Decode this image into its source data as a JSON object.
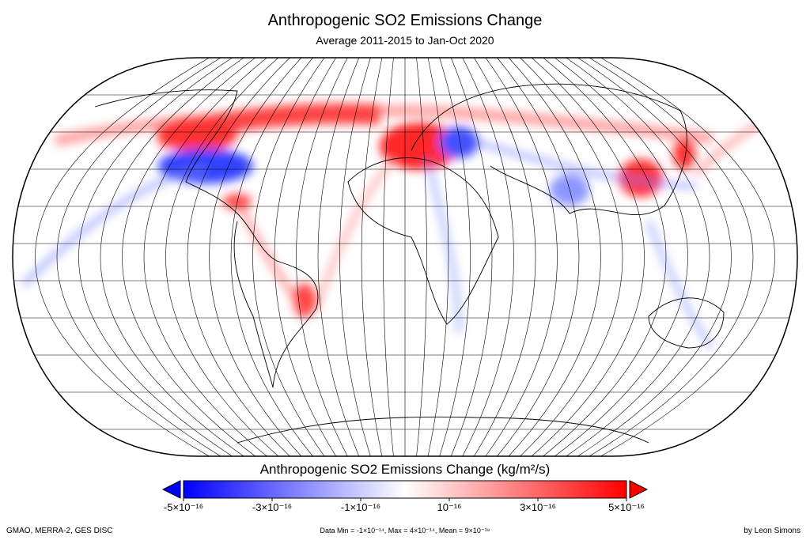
{
  "title": "Anthropogenic SO2 Emissions Change",
  "subtitle": "Average 2011-2015 to Jan-Oct 2020",
  "colorbar": {
    "title": "Anthropogenic SO2 Emissions Change (kg/m²/s)",
    "lim": [
      -5e-16,
      5e-16
    ],
    "colors": [
      "#0000ff",
      "#ffffff",
      "#ff0000"
    ],
    "ticks": [
      {
        "value": -5e-16,
        "label": "-5×10⁻¹⁶"
      },
      {
        "value": -3e-16,
        "label": "-3×10⁻¹⁶"
      },
      {
        "value": -1e-16,
        "label": "-1×10⁻¹⁶"
      },
      {
        "value": 1e-16,
        "label": "10⁻¹⁶"
      },
      {
        "value": 3e-16,
        "label": "3×10⁻¹⁶"
      },
      {
        "value": 5e-16,
        "label": "5×10⁻¹⁶"
      }
    ]
  },
  "footer": {
    "left": "GMAO, MERRA-2, GES DISC",
    "center": "Data Min = -1×10⁻¹⁴, Max = 4×10⁻¹⁴, Mean = 9×10⁻¹⁸",
    "right": "by Leon Simons"
  }
}
